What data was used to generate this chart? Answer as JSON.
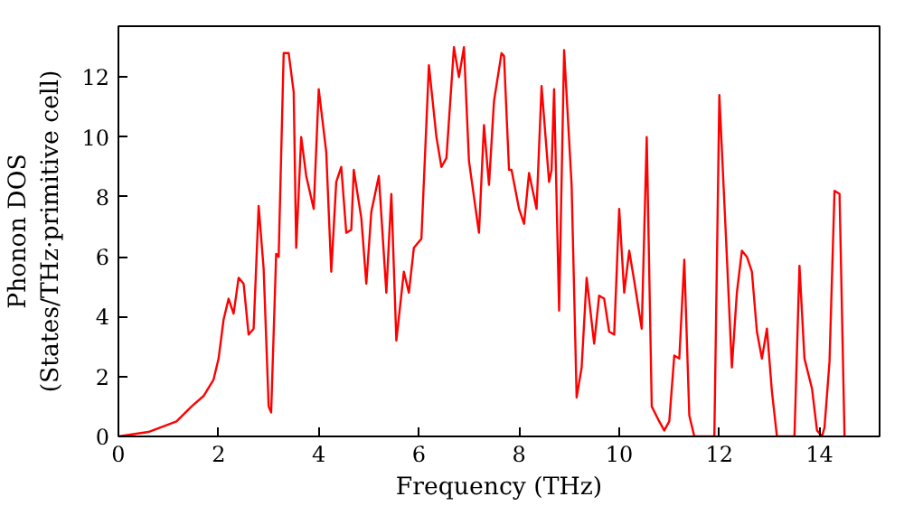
{
  "chart_data": {
    "type": "line",
    "xlabel": "Frequency (THz)",
    "ylabel": "Phonon DOS\n(States/THz·primitive cell)",
    "x": [
      0,
      0.6,
      1.16,
      1.46,
      1.7,
      1.9,
      2.0,
      2.1,
      2.2,
      2.3,
      2.4,
      2.5,
      2.6,
      2.7,
      2.8,
      2.9,
      3.0,
      3.05,
      3.15,
      3.2,
      3.3,
      3.4,
      3.5,
      3.55,
      3.65,
      3.75,
      3.9,
      4.0,
      4.15,
      4.25,
      4.35,
      4.45,
      4.55,
      4.65,
      4.7,
      4.85,
      4.95,
      5.05,
      5.2,
      5.35,
      5.45,
      5.55,
      5.7,
      5.8,
      5.9,
      6.05,
      6.2,
      6.35,
      6.45,
      6.55,
      6.7,
      6.8,
      6.9,
      7.0,
      7.2,
      7.3,
      7.4,
      7.5,
      7.65,
      7.7,
      7.8,
      7.85,
      8.0,
      8.1,
      8.2,
      8.35,
      8.45,
      8.6,
      8.65,
      8.7,
      8.8,
      8.9,
      9.05,
      9.15,
      9.25,
      9.35,
      9.5,
      9.6,
      9.7,
      9.8,
      9.9,
      10.0,
      10.1,
      10.2,
      10.3,
      10.45,
      10.55,
      10.65,
      10.8,
      10.9,
      11.0,
      11.1,
      11.2,
      11.3,
      11.4,
      11.5,
      11.9,
      12.0,
      12.15,
      12.25,
      12.35,
      12.45,
      12.55,
      12.65,
      12.75,
      12.85,
      12.95,
      13.05,
      13.15,
      13.5,
      13.6,
      13.7,
      13.85,
      13.95,
      14.05,
      14.1,
      14.2,
      14.3,
      14.4,
      14.5
    ],
    "series": [
      {
        "color": "#ff0000",
        "values": [
          0,
          0.15,
          0.5,
          1.0,
          1.35,
          1.9,
          2.6,
          3.9,
          4.6,
          4.1,
          5.3,
          5.1,
          3.4,
          3.6,
          7.7,
          5.6,
          1.0,
          0.8,
          6.1,
          6.0,
          12.8,
          12.8,
          11.5,
          6.3,
          10.0,
          8.7,
          7.6,
          11.6,
          9.5,
          5.5,
          8.5,
          9.0,
          6.8,
          6.9,
          8.9,
          7.3,
          5.1,
          7.5,
          8.7,
          4.8,
          8.1,
          3.2,
          5.5,
          4.8,
          6.3,
          6.6,
          12.4,
          10.0,
          9.0,
          9.3,
          13.0,
          12.0,
          13.0,
          9.2,
          6.8,
          10.4,
          8.4,
          11.2,
          12.8,
          12.7,
          8.9,
          8.9,
          7.6,
          7.1,
          8.8,
          7.6,
          11.7,
          8.5,
          8.9,
          11.6,
          4.2,
          12.9,
          8.4,
          1.3,
          2.3,
          5.3,
          3.1,
          4.7,
          4.6,
          3.5,
          3.4,
          7.6,
          4.8,
          6.2,
          5.2,
          3.6,
          10.0,
          1.0,
          0.5,
          0.2,
          0.5,
          2.7,
          2.6,
          5.9,
          0.7,
          0,
          0,
          11.4,
          6.0,
          2.3,
          4.8,
          6.2,
          6.0,
          5.5,
          3.5,
          2.6,
          3.6,
          1.5,
          0,
          0,
          5.7,
          2.6,
          1.6,
          0.2,
          0,
          0.3,
          2.5,
          8.2,
          8.1,
          0
        ]
      }
    ],
    "xlim": [
      0,
      15.2
    ],
    "ylim": [
      0,
      13.7
    ],
    "xticks": [
      0,
      2,
      4,
      6,
      8,
      10,
      12,
      14
    ],
    "yticks": [
      0,
      2,
      4,
      6,
      8,
      10,
      12
    ],
    "grid": false
  }
}
